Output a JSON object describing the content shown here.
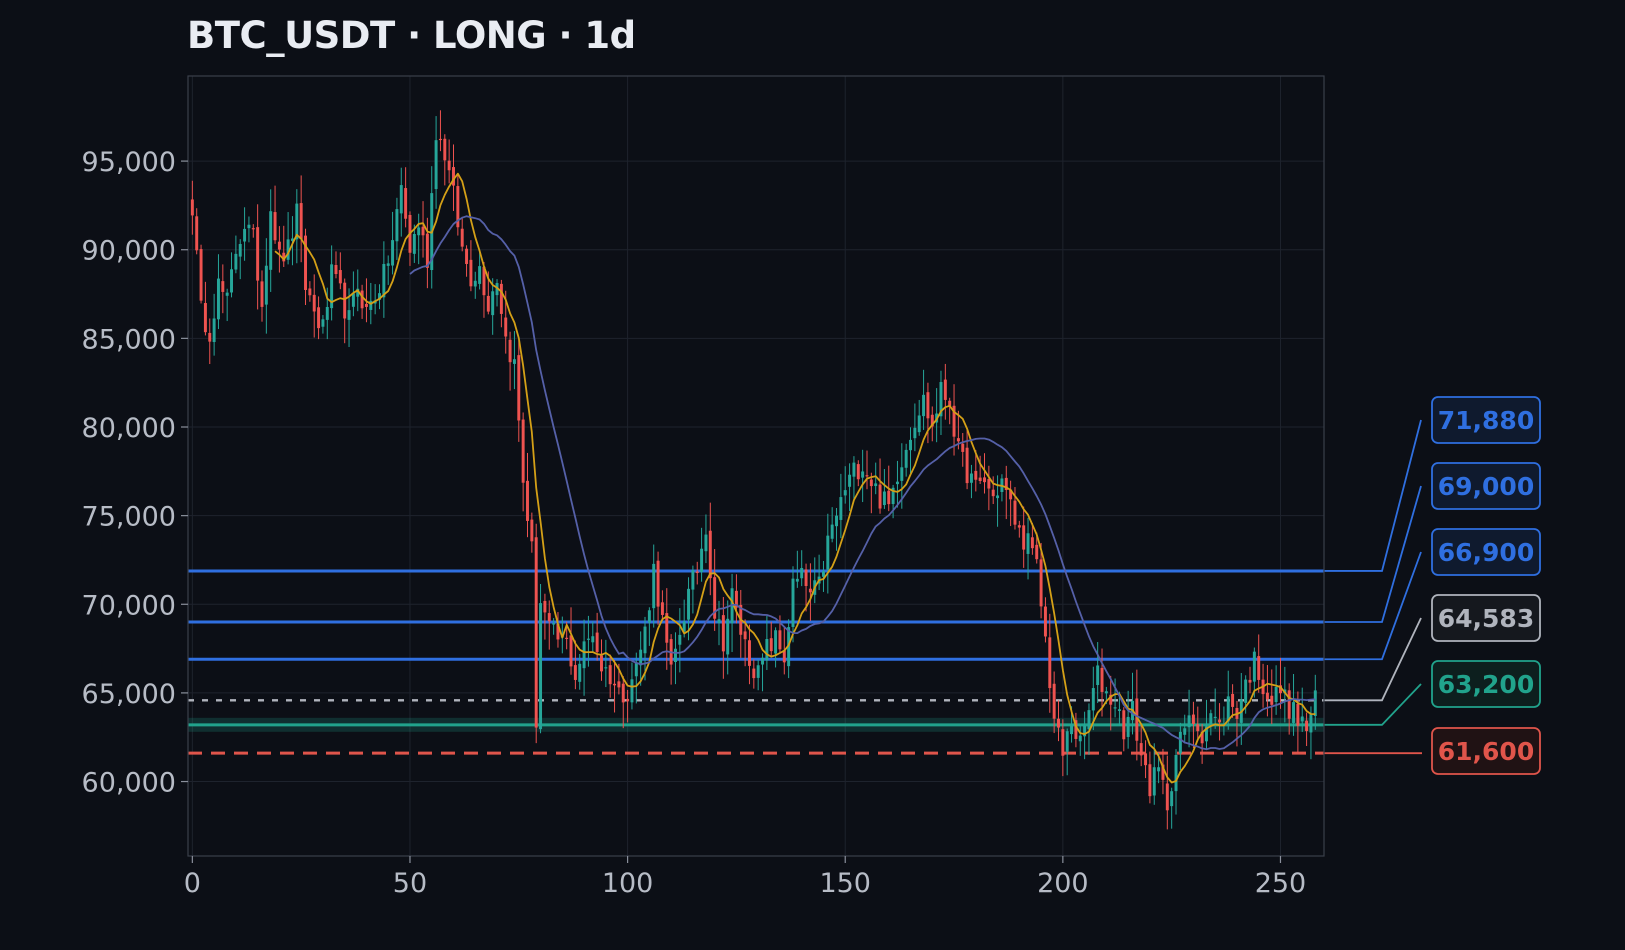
{
  "title": "BTC_USDT · LONG · 1d",
  "colors": {
    "background": "#0c0f16",
    "plot_border": "#3a3f4a",
    "grid": "#1e232d",
    "candle_up": "#26a69a",
    "candle_down": "#ef5350",
    "ma_fast": "#d4a017",
    "ma_slow": "#5560a8",
    "resistance": "#2f6fe0",
    "current": "#b0b4bd",
    "entry": "#21a38c",
    "stop": "#e0554b"
  },
  "chart_data": {
    "type": "candlestick",
    "xlim": [
      -1,
      260
    ],
    "ylim": [
      55800,
      99800
    ],
    "x_ticks": [
      0,
      50,
      100,
      150,
      200,
      250
    ],
    "x_tick_labels": [
      "0",
      "50",
      "100",
      "150",
      "200",
      "250"
    ],
    "y_ticks": [
      60000,
      65000,
      70000,
      75000,
      80000,
      85000,
      90000,
      95000
    ],
    "y_tick_labels": [
      "60,000",
      "65,000",
      "70,000",
      "75,000",
      "80,000",
      "85,000",
      "90,000",
      "95,000"
    ],
    "grid": true,
    "close_anchors": [
      [
        0,
        92500
      ],
      [
        2,
        86500
      ],
      [
        4,
        85500
      ],
      [
        6,
        88000
      ],
      [
        8,
        87000
      ],
      [
        10,
        90000
      ],
      [
        12,
        91500
      ],
      [
        14,
        90500
      ],
      [
        16,
        87000
      ],
      [
        18,
        92500
      ],
      [
        20,
        89500
      ],
      [
        22,
        90000
      ],
      [
        24,
        92000
      ],
      [
        26,
        88000
      ],
      [
        28,
        86500
      ],
      [
        30,
        85500
      ],
      [
        32,
        88500
      ],
      [
        34,
        87500
      ],
      [
        36,
        86000
      ],
      [
        38,
        88000
      ],
      [
        40,
        86500
      ],
      [
        42,
        87500
      ],
      [
        44,
        88500
      ],
      [
        46,
        90500
      ],
      [
        48,
        93500
      ],
      [
        50,
        90000
      ],
      [
        52,
        91500
      ],
      [
        54,
        89500
      ],
      [
        56,
        96800
      ],
      [
        58,
        95500
      ],
      [
        60,
        93000
      ],
      [
        62,
        90000
      ],
      [
        64,
        88500
      ],
      [
        66,
        89000
      ],
      [
        68,
        87000
      ],
      [
        70,
        88500
      ],
      [
        72,
        85000
      ],
      [
        74,
        83500
      ],
      [
        76,
        77000
      ],
      [
        78,
        73000
      ],
      [
        79,
        63500
      ],
      [
        80,
        70200
      ],
      [
        82,
        68500
      ],
      [
        84,
        68000
      ],
      [
        86,
        67800
      ],
      [
        88,
        66000
      ],
      [
        90,
        67500
      ],
      [
        92,
        68500
      ],
      [
        94,
        66500
      ],
      [
        96,
        66000
      ],
      [
        98,
        65000
      ],
      [
        100,
        65200
      ],
      [
        102,
        66500
      ],
      [
        104,
        68500
      ],
      [
        106,
        72000
      ],
      [
        108,
        69000
      ],
      [
        110,
        66000
      ],
      [
        112,
        68500
      ],
      [
        114,
        70500
      ],
      [
        116,
        72000
      ],
      [
        118,
        74500
      ],
      [
        120,
        69500
      ],
      [
        122,
        68000
      ],
      [
        124,
        70500
      ],
      [
        126,
        68500
      ],
      [
        128,
        67000
      ],
      [
        130,
        66000
      ],
      [
        132,
        67500
      ],
      [
        134,
        68000
      ],
      [
        136,
        67000
      ],
      [
        138,
        71000
      ],
      [
        140,
        71500
      ],
      [
        142,
        70500
      ],
      [
        144,
        71000
      ],
      [
        146,
        73500
      ],
      [
        148,
        75000
      ],
      [
        150,
        76500
      ],
      [
        152,
        77500
      ],
      [
        154,
        78000
      ],
      [
        156,
        77000
      ],
      [
        158,
        76000
      ],
      [
        160,
        75500
      ],
      [
        162,
        77500
      ],
      [
        164,
        79000
      ],
      [
        166,
        80500
      ],
      [
        168,
        81500
      ],
      [
        170,
        80000
      ],
      [
        172,
        82000
      ],
      [
        174,
        81500
      ],
      [
        176,
        78500
      ],
      [
        178,
        77500
      ],
      [
        180,
        76500
      ],
      [
        182,
        77000
      ],
      [
        184,
        76000
      ],
      [
        186,
        77000
      ],
      [
        188,
        75500
      ],
      [
        190,
        74000
      ],
      [
        192,
        73500
      ],
      [
        194,
        72000
      ],
      [
        196,
        68000
      ],
      [
        198,
        63500
      ],
      [
        200,
        61500
      ],
      [
        202,
        63500
      ],
      [
        204,
        62000
      ],
      [
        206,
        64000
      ],
      [
        208,
        66000
      ],
      [
        210,
        65000
      ],
      [
        212,
        64500
      ],
      [
        214,
        63000
      ],
      [
        216,
        64000
      ],
      [
        218,
        61500
      ],
      [
        220,
        59800
      ],
      [
        222,
        60500
      ],
      [
        224,
        58800
      ],
      [
        226,
        61500
      ],
      [
        228,
        63000
      ],
      [
        230,
        63500
      ],
      [
        232,
        62800
      ],
      [
        234,
        63800
      ],
      [
        236,
        63000
      ],
      [
        238,
        64500
      ],
      [
        240,
        64000
      ],
      [
        242,
        65500
      ],
      [
        244,
        66800
      ],
      [
        246,
        65500
      ],
      [
        248,
        64500
      ],
      [
        250,
        65200
      ],
      [
        252,
        64200
      ],
      [
        254,
        63500
      ],
      [
        256,
        63000
      ],
      [
        258,
        64500
      ]
    ],
    "series": [
      {
        "name": "",
        "type": "moving-average",
        "window": 7,
        "start_x": 19,
        "color_key": "ma_fast"
      },
      {
        "name": "",
        "type": "moving-average",
        "window": 20,
        "start_x": 50,
        "color_key": "ma_slow"
      }
    ],
    "levels": [
      {
        "label": "71,880",
        "value": 71880,
        "style": "solid",
        "color_key": "resistance",
        "badge_fill": "#0f1a2e"
      },
      {
        "label": "69,000",
        "value": 69000,
        "style": "solid",
        "color_key": "resistance",
        "badge_fill": "#0f1a2e"
      },
      {
        "label": "66,900",
        "value": 66900,
        "style": "solid",
        "color_key": "resistance",
        "badge_fill": "#0f1a2e"
      },
      {
        "label": "64,583",
        "value": 64583,
        "style": "dotted",
        "color_key": "current",
        "badge_fill": "#15181e"
      },
      {
        "label": "63,200",
        "value": 63200,
        "style": "solid-band",
        "color_key": "entry",
        "badge_fill": "#0d1f1e"
      },
      {
        "label": "61,600",
        "value": 61600,
        "style": "dashed",
        "color_key": "stop",
        "badge_fill": "#201214"
      }
    ]
  }
}
